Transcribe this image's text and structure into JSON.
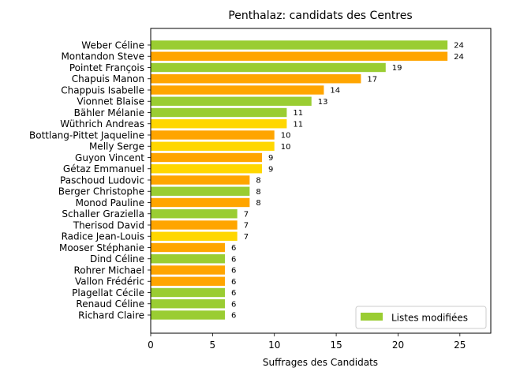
{
  "chart_data": {
    "type": "bar",
    "orientation": "horizontal",
    "title": "Penthalaz: candidats des Centres",
    "xlabel": "Suffrages des Candidats",
    "ylabel": "",
    "xlim": [
      0,
      27.5
    ],
    "xticks": [
      0,
      5,
      10,
      15,
      20,
      25
    ],
    "legend": {
      "label": "Listes modifiées",
      "color": "#9acd32",
      "placement": "lower-right"
    },
    "colors": {
      "green": "#9acd32",
      "orange": "#ffa500",
      "yellow": "#ffd700"
    },
    "bars": [
      {
        "name": "Weber Céline",
        "value": 24,
        "color": "green"
      },
      {
        "name": "Montandon Steve",
        "value": 24,
        "color": "orange"
      },
      {
        "name": "Pointet François",
        "value": 19,
        "color": "green"
      },
      {
        "name": "Chapuis Manon",
        "value": 17,
        "color": "orange"
      },
      {
        "name": "Chappuis Isabelle",
        "value": 14,
        "color": "orange"
      },
      {
        "name": "Vionnet Blaise",
        "value": 13,
        "color": "green"
      },
      {
        "name": "Bähler Mélanie",
        "value": 11,
        "color": "green"
      },
      {
        "name": "Wüthrich Andreas",
        "value": 11,
        "color": "yellow"
      },
      {
        "name": "Bottlang-Pittet Jaqueline",
        "value": 10,
        "color": "orange"
      },
      {
        "name": "Melly Serge",
        "value": 10,
        "color": "yellow"
      },
      {
        "name": "Guyon Vincent",
        "value": 9,
        "color": "orange"
      },
      {
        "name": "Gétaz Emmanuel",
        "value": 9,
        "color": "yellow"
      },
      {
        "name": "Paschoud Ludovic",
        "value": 8,
        "color": "orange"
      },
      {
        "name": "Berger Christophe",
        "value": 8,
        "color": "green"
      },
      {
        "name": "Monod Pauline",
        "value": 8,
        "color": "orange"
      },
      {
        "name": "Schaller Graziella",
        "value": 7,
        "color": "green"
      },
      {
        "name": "Therisod David",
        "value": 7,
        "color": "orange"
      },
      {
        "name": "Radice Jean-Louis",
        "value": 7,
        "color": "yellow"
      },
      {
        "name": "Mooser Stéphanie",
        "value": 6,
        "color": "orange"
      },
      {
        "name": "Dind Céline",
        "value": 6,
        "color": "green"
      },
      {
        "name": "Rohrer Michael",
        "value": 6,
        "color": "orange"
      },
      {
        "name": "Vallon Frédéric",
        "value": 6,
        "color": "orange"
      },
      {
        "name": "Plagellat Cécile",
        "value": 6,
        "color": "green"
      },
      {
        "name": "Renaud Céline",
        "value": 6,
        "color": "green"
      },
      {
        "name": "Richard Claire",
        "value": 6,
        "color": "green"
      }
    ]
  }
}
